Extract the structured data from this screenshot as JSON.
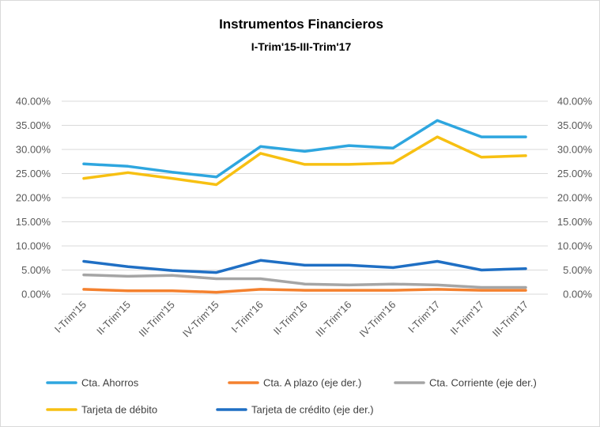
{
  "chart_data": {
    "type": "line",
    "title": "Instrumentos Financieros",
    "subtitle": "I-Trim'15-III-Trim'17",
    "categories": [
      "I-Trim'15",
      "II-Trim'15",
      "III-Trim'15",
      "IV-Trim'15",
      "I-Trim'16",
      "II-Trim'16",
      "III-Trim'16",
      "IV-Trim'16",
      "I-Trim'17",
      "II-Trim'17",
      "III-Trim'17"
    ],
    "y_left": {
      "min": 0,
      "max": 40,
      "ticks": [
        "0.00%",
        "5.00%",
        "10.00%",
        "15.00%",
        "20.00%",
        "25.00%",
        "30.00%",
        "35.00%",
        "40.00%"
      ]
    },
    "y_right": {
      "min": 0,
      "max": 40,
      "ticks": [
        "0.00%",
        "5.00%",
        "10.00%",
        "15.00%",
        "20.00%",
        "25.00%",
        "30.00%",
        "35.00%",
        "40.00%"
      ]
    },
    "grid": true,
    "legend_position": "bottom",
    "series": [
      {
        "name": "Cta. Ahorros",
        "color": "#2ea6df",
        "axis": "left",
        "values": [
          27.0,
          26.5,
          25.3,
          24.3,
          30.6,
          29.6,
          30.8,
          30.3,
          36.0,
          32.6,
          32.6
        ]
      },
      {
        "name": "Cta. A plazo (eje der.)",
        "color": "#f4812f",
        "axis": "right",
        "values": [
          1.0,
          0.7,
          0.7,
          0.4,
          1.0,
          0.8,
          0.8,
          0.8,
          1.0,
          0.8,
          0.8
        ]
      },
      {
        "name": "Cta. Corriente (eje der.)",
        "color": "#a5a5a5",
        "axis": "right",
        "values": [
          4.0,
          3.7,
          3.9,
          3.2,
          3.2,
          2.1,
          1.9,
          2.1,
          1.9,
          1.4,
          1.4
        ]
      },
      {
        "name": "Tarjeta de débito",
        "color": "#f7c012",
        "axis": "left",
        "values": [
          24.0,
          25.2,
          24.0,
          22.7,
          29.2,
          26.9,
          26.9,
          27.2,
          32.6,
          28.4,
          28.7
        ]
      },
      {
        "name": "Tarjeta de crédito (eje der.)",
        "color": "#1f6fc4",
        "axis": "right",
        "values": [
          6.8,
          5.7,
          4.9,
          4.5,
          7.0,
          6.0,
          6.0,
          5.5,
          6.8,
          5.0,
          5.3
        ]
      }
    ]
  }
}
